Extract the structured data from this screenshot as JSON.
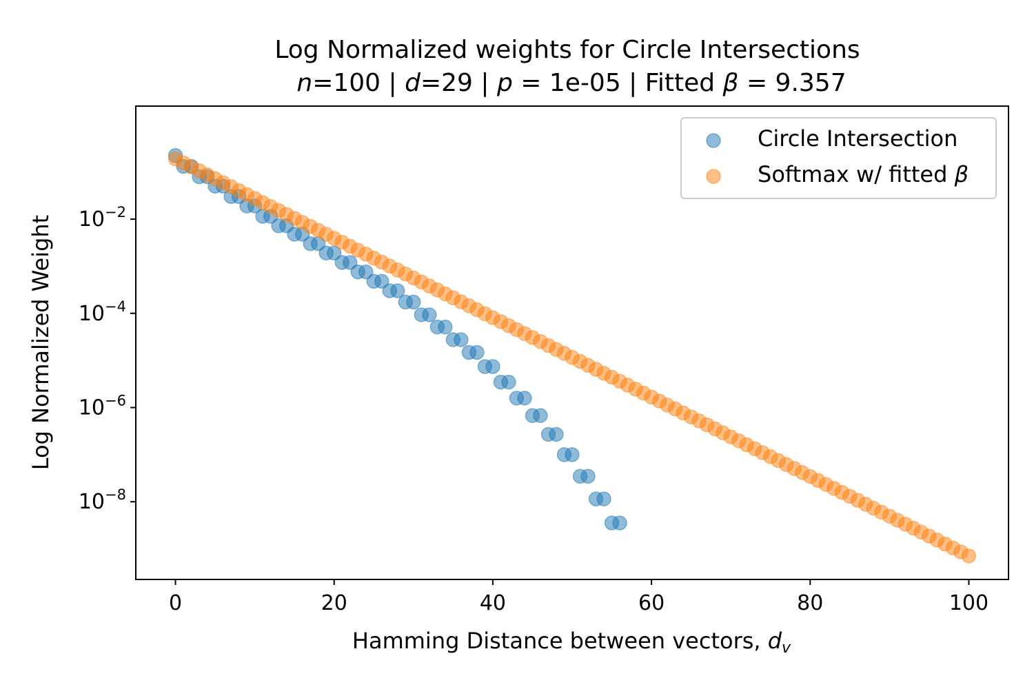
{
  "chart_data": {
    "type": "scatter",
    "title_line1": "Log Normalized weights for Circle Intersections",
    "title_line2": {
      "n_sym": "n",
      "n_val": "=100 | ",
      "d_sym": "d",
      "d_val": "=29 | ",
      "p_sym": "p",
      "p_val": " = 1e-05 | Fitted ",
      "beta_sym": "β",
      "beta_val": " = 9.357"
    },
    "xlabel_main": "Hamming Distance between vectors, ",
    "xlabel_sym": "d",
    "xlabel_sub": "v",
    "ylabel": "Log Normalized Weight",
    "xlim": [
      -5,
      105
    ],
    "ylim_log10": [
      -9.65,
      0.4
    ],
    "y_scale": "log",
    "xticks": [
      0,
      20,
      40,
      60,
      80,
      100
    ],
    "yticks": [
      {
        "base": "10",
        "exp": "−2",
        "value": -2
      },
      {
        "base": "10",
        "exp": "−4",
        "value": -4
      },
      {
        "base": "10",
        "exp": "−6",
        "value": -6
      },
      {
        "base": "10",
        "exp": "−8",
        "value": -8
      }
    ],
    "legend_position": "top-right",
    "series": [
      {
        "name": "Circle Intersection",
        "color": "#1f77b4",
        "x": [
          0,
          1,
          2,
          3,
          4,
          5,
          6,
          7,
          8,
          9,
          10,
          11,
          12,
          13,
          14,
          15,
          16,
          17,
          18,
          19,
          20,
          21,
          22,
          23,
          24,
          25,
          26,
          27,
          28,
          29,
          30,
          31,
          32,
          33,
          34,
          35,
          36,
          37,
          38,
          39,
          40,
          41,
          42,
          43,
          44,
          45,
          46,
          47,
          48,
          49,
          50,
          51,
          52,
          53,
          54,
          55,
          56
        ],
        "log10_y": [
          -0.65,
          -0.88,
          -0.88,
          -1.1,
          -1.1,
          -1.3,
          -1.3,
          -1.52,
          -1.52,
          -1.72,
          -1.72,
          -1.94,
          -1.94,
          -2.14,
          -2.14,
          -2.32,
          -2.32,
          -2.52,
          -2.52,
          -2.72,
          -2.72,
          -2.92,
          -2.92,
          -3.12,
          -3.12,
          -3.32,
          -3.32,
          -3.52,
          -3.52,
          -3.76,
          -3.76,
          -4.03,
          -4.03,
          -4.29,
          -4.29,
          -4.56,
          -4.56,
          -4.83,
          -4.83,
          -5.13,
          -5.13,
          -5.46,
          -5.46,
          -5.8,
          -5.8,
          -6.17,
          -6.17,
          -6.57,
          -6.57,
          -7.0,
          -7.0,
          -7.46,
          -7.46,
          -7.94,
          -7.94,
          -8.45,
          -8.45
        ]
      },
      {
        "name": "Softmax w/ fitted β",
        "name_main": "Softmax w/ fitted ",
        "name_sym": "β",
        "color": "#ff7f0e",
        "x_start": 0,
        "x_end": 100,
        "log10_y_start": -0.72,
        "log10_y_end": -9.15
      }
    ]
  }
}
